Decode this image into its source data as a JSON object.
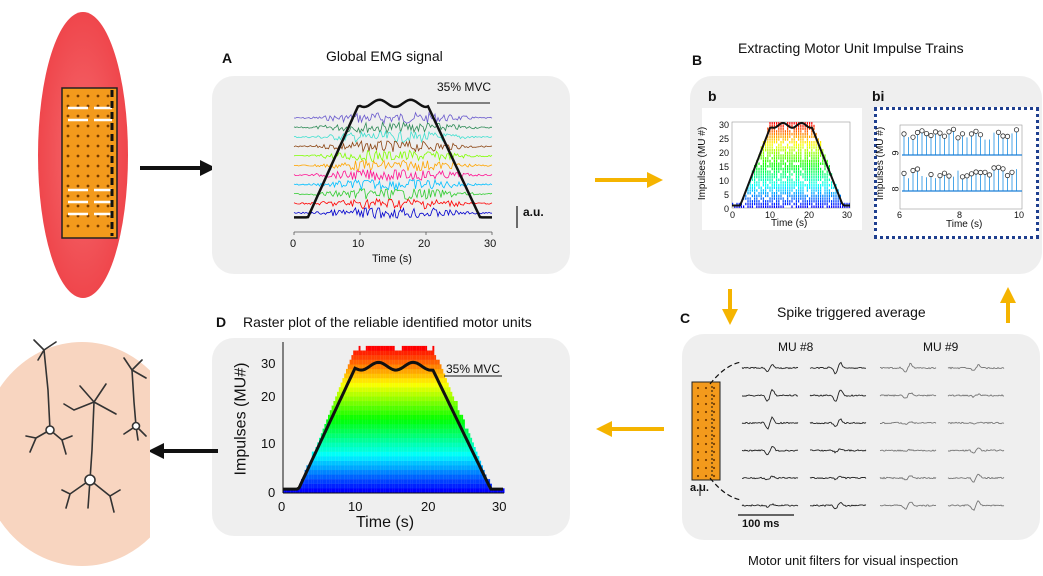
{
  "panels": {
    "A": {
      "letter": "A",
      "title": "Global EMG signal",
      "mvc": "35% MVC",
      "scale": "a.u.",
      "xlabel": "Time (s)",
      "xticks": [
        "0",
        "10",
        "20",
        "30"
      ]
    },
    "B": {
      "letter": "B",
      "title": "Extracting Motor Unit Impulse Trains",
      "sub_b": {
        "letter": "b",
        "ylabel": "Impulses (MU #)",
        "xlabel": "Time (s)",
        "yticks": [
          "0",
          "5",
          "10",
          "15",
          "20",
          "25",
          "30"
        ],
        "xticks": [
          "0",
          "10",
          "20",
          "30"
        ]
      },
      "sub_bi": {
        "letter": "bi",
        "ylabel": "Impulses (MU #)",
        "xlabel": "Time (s)",
        "yticks": [
          "8",
          "9"
        ],
        "xticks": [
          "6",
          "8",
          "10"
        ]
      }
    },
    "C": {
      "letter": "C",
      "title": "Spike triggered average",
      "mu8": "MU #8",
      "mu9": "MU #9",
      "scale_y": "a.u.",
      "scale_x": "100 ms",
      "caption": "Motor unit filters for visual inspection"
    },
    "D": {
      "letter": "D",
      "title": "Raster plot of the reliable identified motor units",
      "ylabel": "Impulses (MU#)",
      "xlabel": "Time (s)",
      "mvc": "35% MVC",
      "yticks": [
        "0",
        "10",
        "20",
        "30"
      ],
      "xticks": [
        "0",
        "10",
        "20",
        "30"
      ]
    }
  },
  "colors": {
    "panel_bg": "#efefef",
    "arrow_orange": "#f5b400",
    "muscle_red": "#f0474c",
    "electrode_orange": "#f39a1c",
    "neuron_bg": "#f8d5c0",
    "dotted_blue": "#1f3f8f",
    "emg_channels": [
      "#6a5acd",
      "#2e8b57",
      "#40e0d0",
      "#8b4513",
      "#7fff00",
      "#ffa500",
      "#ff1493",
      "#00bfff",
      "#32cd32",
      "#ff0000",
      "#0000cd"
    ]
  },
  "icons": [
    "muscle-with-electrode-grid",
    "motor-neurons-illustration",
    "electrode-grid-icon"
  ]
}
